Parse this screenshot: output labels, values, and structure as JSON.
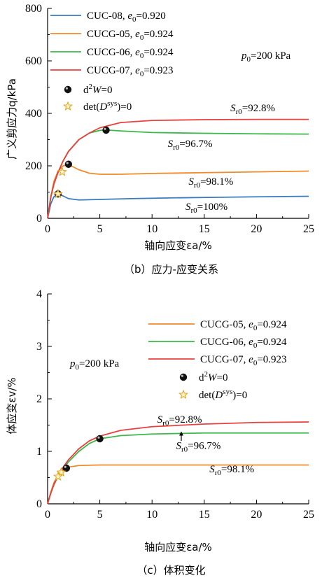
{
  "chart_data": [
    {
      "id": "b",
      "type": "line",
      "caption": "（b）应力-应变关系",
      "xlabel": "轴向应变εa/%",
      "ylabel": "广义剪应力q/kPa",
      "xlim": [
        0,
        25
      ],
      "ylim": [
        0,
        800
      ],
      "xticks": [
        0,
        5,
        10,
        15,
        20,
        25
      ],
      "yticks": [
        0,
        200,
        400,
        600,
        800
      ],
      "grid": false,
      "legend_position": "top-left",
      "condition_label": "p0=200 kPa",
      "series": [
        {
          "name": "CUC-08, e0=0.920",
          "color": "#3a7bbf",
          "x": [
            0,
            0.3,
            0.6,
            1.0,
            1.5,
            2,
            3,
            5,
            8,
            12,
            16,
            20,
            25
          ],
          "y": [
            0,
            55,
            82,
            92,
            85,
            75,
            70,
            72,
            75,
            78,
            80,
            82,
            84
          ]
        },
        {
          "name": "CUCG-05, e0=0.924",
          "color": "#f08a2c",
          "x": [
            0,
            0.3,
            0.6,
            1.0,
            1.5,
            2,
            2.5,
            3,
            4,
            5,
            7,
            10,
            15,
            20,
            25
          ],
          "y": [
            0,
            80,
            140,
            180,
            200,
            205,
            195,
            185,
            172,
            168,
            168,
            171,
            174,
            177,
            180
          ]
        },
        {
          "name": "CUCG-06, e0=0.924",
          "color": "#3cb84a",
          "x": [
            0,
            0.3,
            0.6,
            1.0,
            1.5,
            2,
            3,
            4,
            5,
            5.5,
            7,
            10,
            15,
            20,
            25
          ],
          "y": [
            0,
            80,
            130,
            175,
            220,
            255,
            300,
            325,
            335,
            337,
            333,
            327,
            324,
            322,
            321
          ]
        },
        {
          "name": "CUCG-07, e0=0.923",
          "color": "#e8403e",
          "x": [
            0,
            0.3,
            0.6,
            1.0,
            1.5,
            2,
            3,
            4,
            5,
            7,
            10,
            15,
            20,
            25
          ],
          "y": [
            0,
            80,
            130,
            175,
            220,
            255,
            300,
            325,
            345,
            365,
            373,
            376,
            377,
            377
          ]
        }
      ],
      "markers": [
        {
          "type": "d2W=0",
          "x": 2.0,
          "y": 206
        },
        {
          "type": "d2W=0",
          "x": 5.6,
          "y": 336
        },
        {
          "type": "d2W=0",
          "x": 1.0,
          "y": 93
        },
        {
          "type": "det=0",
          "x": 1.0,
          "y": 93
        },
        {
          "type": "det=0",
          "x": 1.4,
          "y": 177
        }
      ],
      "marker_legend": [
        {
          "type": "d2W=0",
          "label": "d²W=0"
        },
        {
          "type": "det=0",
          "label": "det(Dsys)=0"
        }
      ],
      "annotations": [
        {
          "text": "Sr0=92.8%",
          "x": 17.5,
          "y": 408
        },
        {
          "text": "Sr0=96.7%",
          "x": 11.5,
          "y": 272
        },
        {
          "text": "Sr0=98.1%",
          "x": 13.5,
          "y": 128
        },
        {
          "text": "Sr0=100%",
          "x": 13.2,
          "y": 32
        }
      ]
    },
    {
      "id": "c",
      "type": "line",
      "caption": "（c）体积变化",
      "xlabel": "轴向应变εa/%",
      "ylabel": "体应变εv/%",
      "xlim": [
        0,
        25
      ],
      "ylim": [
        0,
        4
      ],
      "xticks": [
        0,
        5,
        10,
        15,
        20,
        25
      ],
      "yticks": [
        0,
        1,
        2,
        3,
        4
      ],
      "grid": false,
      "legend_position": "top-right",
      "condition_label": "p0=200 kPa",
      "series": [
        {
          "name": "CUCG-05, e0=0.924",
          "color": "#f08a2c",
          "x": [
            0,
            0.3,
            0.6,
            1.0,
            1.5,
            2,
            3,
            5,
            10,
            15,
            20,
            25
          ],
          "y": [
            0,
            0.22,
            0.4,
            0.55,
            0.65,
            0.7,
            0.73,
            0.74,
            0.74,
            0.74,
            0.74,
            0.74
          ]
        },
        {
          "name": "CUCG-06, e0=0.924",
          "color": "#3cb84a",
          "x": [
            0,
            0.3,
            0.6,
            1.0,
            1.5,
            2,
            3,
            4,
            5,
            7,
            10,
            15,
            20,
            25
          ],
          "y": [
            0,
            0.2,
            0.36,
            0.52,
            0.67,
            0.8,
            1.0,
            1.15,
            1.24,
            1.3,
            1.33,
            1.35,
            1.35,
            1.35
          ]
        },
        {
          "name": "CUCG-07, e0=0.923",
          "color": "#e8403e",
          "x": [
            0,
            0.3,
            0.6,
            1.0,
            1.5,
            2,
            3,
            4,
            5,
            7,
            10,
            15,
            20,
            25
          ],
          "y": [
            0,
            0.2,
            0.37,
            0.54,
            0.7,
            0.84,
            1.05,
            1.2,
            1.29,
            1.4,
            1.47,
            1.52,
            1.55,
            1.56
          ]
        }
      ],
      "markers": [
        {
          "type": "d2W=0",
          "x": 1.8,
          "y": 0.68
        },
        {
          "type": "d2W=0",
          "x": 5.0,
          "y": 1.24
        },
        {
          "type": "det=0",
          "x": 1.3,
          "y": 0.6
        },
        {
          "type": "det=0",
          "x": 1.0,
          "y": 0.52
        }
      ],
      "marker_legend": [
        {
          "type": "d2W=0",
          "label": "d²W=0"
        },
        {
          "type": "det=0",
          "label": "det(Dsys)=0"
        }
      ],
      "annotations": [
        {
          "text": "Sr0=92.8%",
          "x": 10.5,
          "y": 1.55
        },
        {
          "text": "Sr0=96.7%",
          "x": 12.3,
          "y": 1.05
        },
        {
          "text": "Sr0=98.1%",
          "x": 15.5,
          "y": 0.6
        }
      ],
      "arrow": {
        "x": 12.8,
        "y_from": 1.2,
        "y_to": 1.38
      }
    }
  ]
}
